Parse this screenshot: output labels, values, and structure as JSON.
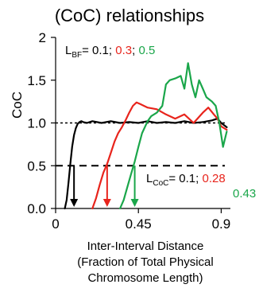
{
  "chart_data": {
    "type": "line",
    "title": "(CoC) relationships",
    "xlabel_lines": [
      "Inter-Interval Distance",
      "(Fraction of Total  Physical",
      "Chromosome Length)"
    ],
    "ylabel": "CoC",
    "xlim": [
      0,
      0.95
    ],
    "ylim": [
      0,
      2
    ],
    "x_ticks": [
      0,
      0.45,
      0.9
    ],
    "x_tick_labels": [
      "0",
      "0.45",
      "0.9"
    ],
    "y_ticks": [
      0.0,
      0.5,
      1.0,
      1.5,
      2
    ],
    "y_tick_labels": [
      "0.0",
      "0.5",
      "1.0",
      "1.5",
      "2"
    ],
    "reference_lines": [
      {
        "y": 1.0,
        "style": "dotted",
        "color": "#000000"
      },
      {
        "y": 0.5,
        "style": "dashed",
        "color": "#000000"
      }
    ],
    "annotations": {
      "lbf": {
        "prefix": "L",
        "subscript": "BF",
        "eq": "= 0.1; ",
        "v2": "0.3",
        "sep": "; ",
        "v3": "0.5"
      },
      "lcoc": {
        "prefix": "L",
        "subscript": "CoC",
        "eq": "= 0.1; ",
        "v2": "0.28",
        "v3": "0.43"
      }
    },
    "colors": {
      "black": "#000000",
      "red": "#e8241c",
      "green": "#1aa64a"
    },
    "arrows": [
      {
        "x": 0.1,
        "color": "#000000"
      },
      {
        "x": 0.28,
        "color": "#e8241c"
      },
      {
        "x": 0.43,
        "color": "#1aa64a"
      }
    ],
    "series": [
      {
        "color": "#000000",
        "x": [
          0.05,
          0.06,
          0.07,
          0.08,
          0.09,
          0.1,
          0.11,
          0.12,
          0.13,
          0.14,
          0.15,
          0.17,
          0.2,
          0.25,
          0.3,
          0.35,
          0.4,
          0.45,
          0.5,
          0.55,
          0.6,
          0.65,
          0.7,
          0.75,
          0.8,
          0.85,
          0.88,
          0.9,
          0.93
        ],
        "y": [
          0.0,
          0.1,
          0.3,
          0.52,
          0.72,
          0.86,
          0.94,
          0.99,
          1.01,
          1.02,
          1.01,
          1.0,
          1.02,
          1.0,
          1.02,
          1.0,
          1.01,
          1.0,
          1.02,
          1.0,
          1.01,
          1.0,
          1.02,
          1.0,
          1.01,
          1.03,
          1.05,
          1.0,
          0.95
        ]
      },
      {
        "color": "#e8241c",
        "x": [
          0.2,
          0.22,
          0.24,
          0.26,
          0.28,
          0.3,
          0.32,
          0.34,
          0.36,
          0.38,
          0.4,
          0.42,
          0.44,
          0.46,
          0.5,
          0.55,
          0.6,
          0.65,
          0.7,
          0.75,
          0.8,
          0.83,
          0.86,
          0.88,
          0.9,
          0.93
        ],
        "y": [
          0.0,
          0.12,
          0.28,
          0.42,
          0.52,
          0.65,
          0.78,
          0.88,
          0.95,
          1.03,
          1.12,
          1.2,
          1.24,
          1.22,
          1.18,
          1.16,
          1.1,
          1.05,
          1.1,
          1.0,
          1.12,
          1.18,
          1.1,
          1.05,
          0.96,
          0.92
        ]
      },
      {
        "color": "#1aa64a",
        "x": [
          0.35,
          0.37,
          0.39,
          0.41,
          0.43,
          0.45,
          0.47,
          0.5,
          0.52,
          0.55,
          0.58,
          0.6,
          0.62,
          0.65,
          0.68,
          0.7,
          0.72,
          0.74,
          0.76,
          0.78,
          0.8,
          0.82,
          0.85,
          0.87,
          0.89,
          0.91,
          0.93
        ],
        "y": [
          0.0,
          0.1,
          0.25,
          0.4,
          0.55,
          0.72,
          0.88,
          1.02,
          1.08,
          1.12,
          1.2,
          1.45,
          1.5,
          1.52,
          1.55,
          1.4,
          1.7,
          1.45,
          1.3,
          1.5,
          1.4,
          1.3,
          1.25,
          1.2,
          1.0,
          0.72,
          0.9
        ]
      }
    ]
  }
}
